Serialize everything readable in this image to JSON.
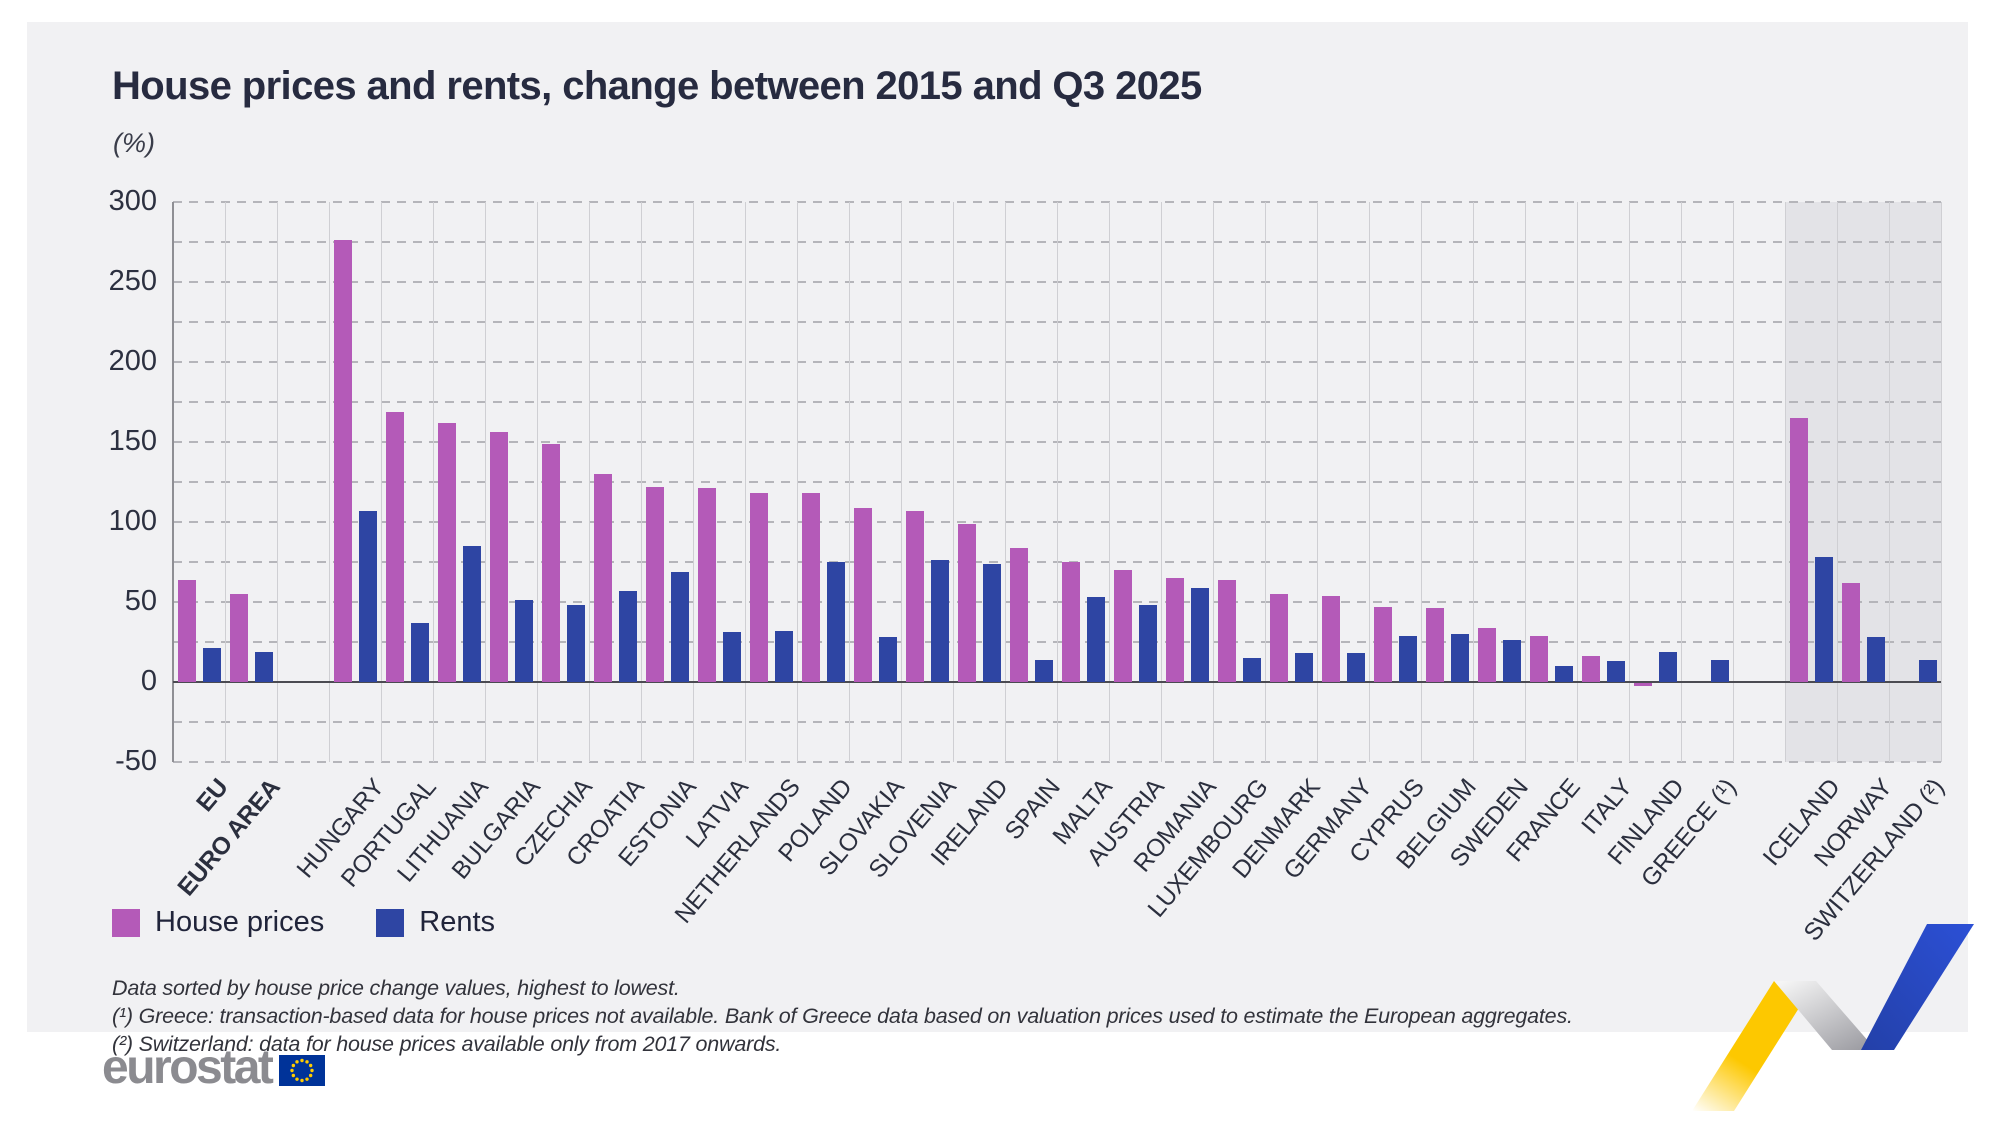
{
  "title": "House prices and rents, change between 2015 and Q3 2025",
  "subtitle": "(%)",
  "legend": [
    {
      "label": "House prices",
      "color": "#b45ab8"
    },
    {
      "label": "Rents",
      "color": "#2e45a3"
    }
  ],
  "footnotes": [
    "Data sorted by house price change values, highest to lowest.",
    "(¹) Greece: transaction-based data for house prices not available. Bank of Greece data based on valuation prices used to estimate the European aggregates.",
    "(²) Switzerland: data for house prices available only from 2017 onwards."
  ],
  "logo_text": "eurostat",
  "colors": {
    "house_prices": "#b45ab8",
    "rents": "#2e45a3",
    "band": "#e3e3e7",
    "card_bg": "#f1f1f3",
    "grid_dashed": "#b5b5ba",
    "grid_vertical": "#cfcfd3",
    "zero_line": "#4b4b52",
    "flag_blue": "#003399",
    "star_yellow": "#ffcc00",
    "ribbon_yellow": "#fdc800",
    "ribbon_blue": "#2847c0"
  },
  "chart_data": {
    "type": "bar",
    "title": "House prices and rents, change between 2015 and Q3 2025",
    "unit": "%",
    "ylim": [
      -50,
      300
    ],
    "yticks": [
      300,
      250,
      200,
      150,
      100,
      50,
      0,
      -50
    ],
    "grid_step": 25,
    "grid": "on",
    "legend_position": "bottom-left",
    "series_names": [
      "House prices",
      "Rents"
    ],
    "sort_note": "sorted by house price change, highest to lowest",
    "columns": [
      {
        "label": "EU",
        "bold": true,
        "house": 64,
        "rents": 21
      },
      {
        "label": "EURO AREA",
        "bold": true,
        "house": 55,
        "rents": 19
      },
      {
        "gap": true
      },
      {
        "label": "HUNGARY",
        "house": 276,
        "rents": 107
      },
      {
        "label": "PORTUGAL",
        "house": 169,
        "rents": 37
      },
      {
        "label": "LITHUANIA",
        "house": 162,
        "rents": 85
      },
      {
        "label": "BULGARIA",
        "house": 156,
        "rents": 51
      },
      {
        "label": "CZECHIA",
        "house": 149,
        "rents": 48
      },
      {
        "label": "CROATIA",
        "house": 130,
        "rents": 57
      },
      {
        "label": "ESTONIA",
        "house": 122,
        "rents": 69
      },
      {
        "label": "LATVIA",
        "house": 121,
        "rents": 31
      },
      {
        "label": "NETHERLANDS",
        "house": 118,
        "rents": 32
      },
      {
        "label": "POLAND",
        "house": 118,
        "rents": 75
      },
      {
        "label": "SLOVAKIA",
        "house": 109,
        "rents": 28
      },
      {
        "label": "SLOVENIA",
        "house": 107,
        "rents": 76
      },
      {
        "label": "IRELAND",
        "house": 99,
        "rents": 74
      },
      {
        "label": "SPAIN",
        "house": 84,
        "rents": 14
      },
      {
        "label": "MALTA",
        "house": 75,
        "rents": 53
      },
      {
        "label": "AUSTRIA",
        "house": 70,
        "rents": 48
      },
      {
        "label": "ROMANIA",
        "house": 65,
        "rents": 59
      },
      {
        "label": "LUXEMBOURG",
        "house": 64,
        "rents": 15
      },
      {
        "label": "DENMARK",
        "house": 55,
        "rents": 18
      },
      {
        "label": "GERMANY",
        "house": 54,
        "rents": 18
      },
      {
        "label": "CYPRUS",
        "house": 47,
        "rents": 29
      },
      {
        "label": "BELGIUM",
        "house": 46,
        "rents": 30
      },
      {
        "label": "SWEDEN",
        "house": 34,
        "rents": 26
      },
      {
        "label": "FRANCE",
        "house": 29,
        "rents": 10
      },
      {
        "label": "ITALY",
        "house": 16,
        "rents": 13
      },
      {
        "label": "FINLAND",
        "house": -2,
        "rents": 19
      },
      {
        "label": "GREECE (¹)",
        "house": null,
        "rents": 14
      },
      {
        "gap": true
      },
      {
        "label": "ICELAND",
        "house": 165,
        "rents": 78,
        "band": true
      },
      {
        "label": "NORWAY",
        "house": 62,
        "rents": 28,
        "band": true
      },
      {
        "label": "SWITZERLAND (²)",
        "house": null,
        "rents": 14,
        "band": true
      }
    ]
  }
}
